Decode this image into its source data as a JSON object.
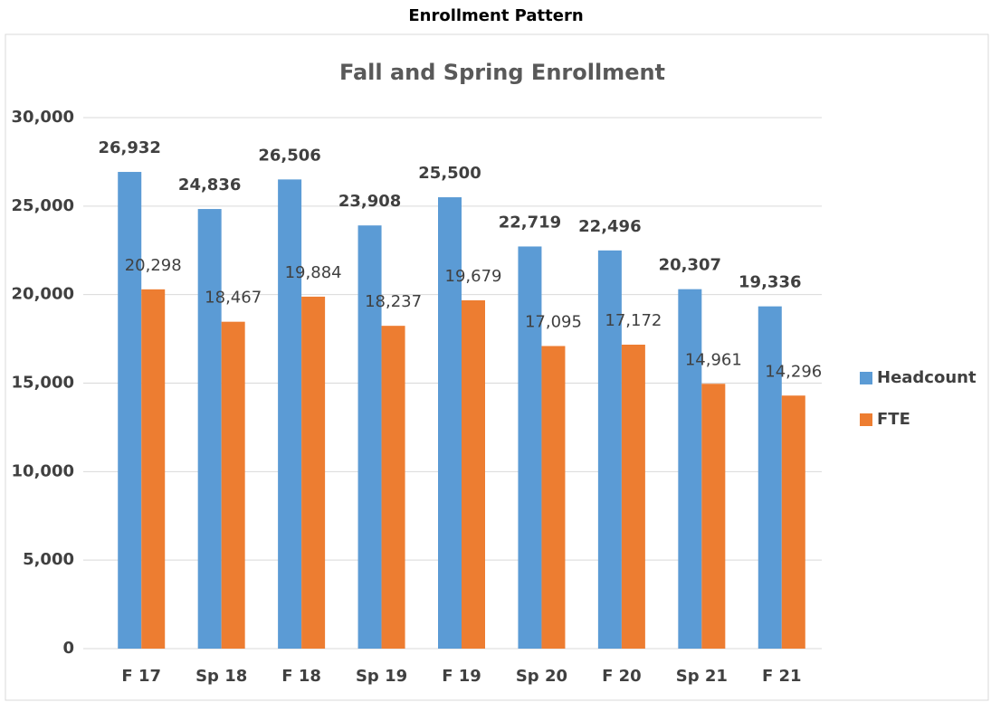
{
  "page_title": "Enrollment Pattern",
  "chart_data": {
    "type": "bar",
    "title": "Fall and Spring Enrollment",
    "categories": [
      "F 17",
      "Sp 18",
      "F 18",
      "Sp 19",
      "F 19",
      "Sp 20",
      "F 20",
      "Sp 21",
      "F 21"
    ],
    "series": [
      {
        "name": "Headcount",
        "color": "#5b9bd5",
        "values": [
          26932,
          24836,
          26506,
          23908,
          25500,
          22719,
          22496,
          20307,
          19336
        ],
        "value_labels": [
          "26,932",
          "24,836",
          "26,506",
          "23,908",
          "25,500",
          "22,719",
          "22,496",
          "20,307",
          "19,336"
        ]
      },
      {
        "name": "FTE",
        "color": "#ed7d31",
        "values": [
          20298,
          18467,
          19884,
          18237,
          19679,
          17095,
          17172,
          14961,
          14296
        ],
        "value_labels": [
          "20,298",
          "18,467",
          "19,884",
          "18,237",
          "19,679",
          "17,095",
          "17,172",
          "14,961",
          "14,296"
        ]
      }
    ],
    "ylim": [
      0,
      30000
    ],
    "yticks": [
      0,
      {
        "value": 5000,
        "label": "5,000"
      },
      {
        "value": 10000,
        "label": "10,000"
      },
      {
        "value": 15000,
        "label": "15,000"
      },
      {
        "value": 20000,
        "label": "20,000"
      },
      {
        "value": 25000,
        "label": "25,000"
      },
      {
        "value": 30000,
        "label": "30,000"
      }
    ],
    "grid": true,
    "legend": "right"
  }
}
